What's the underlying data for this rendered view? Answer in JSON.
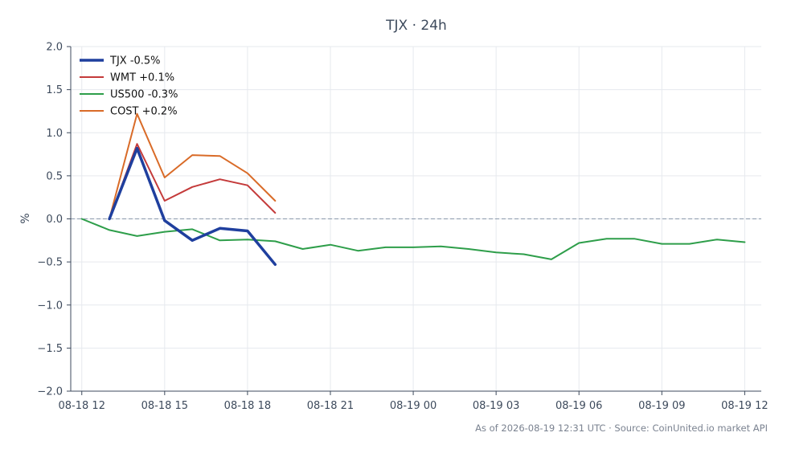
{
  "chart_data": {
    "type": "line",
    "title": "TJX · 24h",
    "ylabel": "%",
    "xlabel": "",
    "ylim": [
      -2.0,
      2.0
    ],
    "y_ticks": [
      2.0,
      1.5,
      1.0,
      0.5,
      0.0,
      -0.5,
      -1.0,
      -1.5,
      -2.0
    ],
    "y_tick_labels": [
      "2.0",
      "1.5",
      "1.0",
      "0.5",
      "0.0",
      "−0.5",
      "−1.0",
      "−1.5",
      "−2.0"
    ],
    "x_range_hours": [
      -0.4,
      24.6
    ],
    "x_ticks": [
      0,
      3,
      6,
      9,
      12,
      15,
      18,
      21,
      24
    ],
    "x_tick_labels": [
      "08-18 12",
      "08-18 15",
      "08-18 18",
      "08-18 21",
      "08-19 00",
      "08-19 03",
      "08-19 06",
      "08-19 09",
      "08-19 12"
    ],
    "grid": true,
    "zero_line": true,
    "legend_position": "top-left",
    "series": [
      {
        "name": "TJX -0.5%",
        "color": "#1f3f9e",
        "width": 3.5,
        "x": [
          1,
          2,
          3,
          4,
          5,
          6,
          7
        ],
        "y": [
          0.0,
          0.82,
          -0.02,
          -0.25,
          -0.11,
          -0.14,
          -0.53
        ]
      },
      {
        "name": "WMT +0.1%",
        "color": "#c43a3a",
        "width": 2,
        "x": [
          1,
          2,
          3,
          4,
          5,
          6,
          7
        ],
        "y": [
          0.0,
          0.87,
          0.21,
          0.37,
          0.46,
          0.39,
          0.07
        ]
      },
      {
        "name": "US500 -0.3%",
        "color": "#2e9e4a",
        "width": 2,
        "x": [
          0,
          1,
          2,
          3,
          4,
          5,
          6,
          7,
          8,
          9,
          10,
          11,
          12,
          13,
          14,
          15,
          16,
          17,
          18,
          19,
          20,
          21,
          22,
          23,
          24
        ],
        "y": [
          0.0,
          -0.13,
          -0.2,
          -0.15,
          -0.12,
          -0.25,
          -0.24,
          -0.26,
          -0.35,
          -0.3,
          -0.37,
          -0.33,
          -0.33,
          -0.32,
          -0.35,
          -0.39,
          -0.41,
          -0.47,
          -0.28,
          -0.23,
          -0.23,
          -0.29,
          -0.29,
          -0.24,
          -0.27
        ]
      },
      {
        "name": "COST +0.2%",
        "color": "#d96b28",
        "width": 2,
        "x": [
          1,
          2,
          3,
          4,
          5,
          6,
          7
        ],
        "y": [
          0.0,
          1.22,
          0.48,
          0.74,
          0.73,
          0.53,
          0.21
        ]
      }
    ],
    "footer": "As of 2026-08-19 12:31 UTC · Source: CoinUnited.io market API"
  }
}
